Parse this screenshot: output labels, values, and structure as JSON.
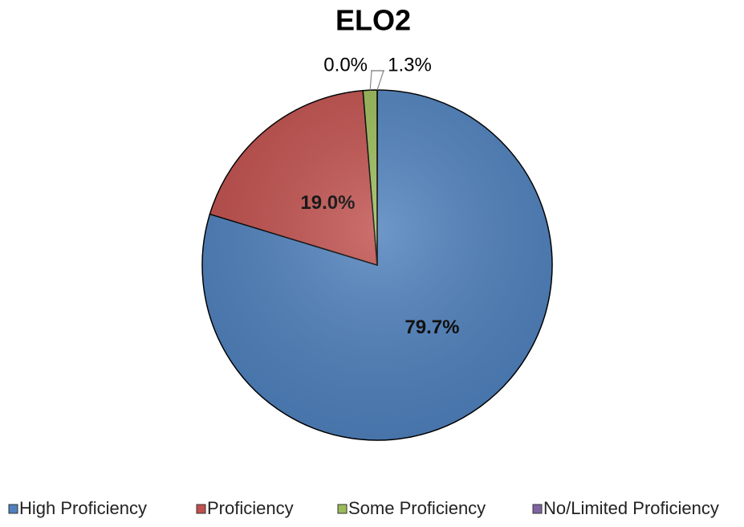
{
  "chart_data": {
    "type": "pie",
    "title": "ELO2",
    "categories": [
      "High Proficiency",
      "Proficiency",
      "Some Proficiency",
      "No/Limited Proficiency"
    ],
    "values": [
      79.7,
      19.0,
      1.3,
      0.0
    ],
    "value_labels": [
      "79.7%",
      "19.0%",
      "1.3%",
      "0.0%"
    ],
    "colors": [
      "#4f81bd",
      "#c0504d",
      "#9bbb59",
      "#8064a2"
    ],
    "legend": "bottom"
  }
}
